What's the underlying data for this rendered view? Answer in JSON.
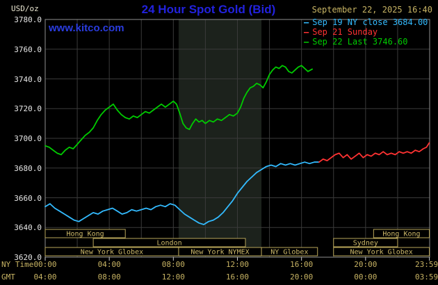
{
  "header": {
    "unit": "USD/oz",
    "title": "24 Hour Spot Gold (Bid)",
    "datetime": "September 22, 2025 16:40",
    "watermark": "www.kitco.com"
  },
  "legend": {
    "items": [
      {
        "label": "Sep 19 NY close 3684.00",
        "color": "#33bbff"
      },
      {
        "label": "Sep 21 Sunday",
        "color": "#ff3232"
      },
      {
        "label": "Sep 22 Last 3746.60",
        "color": "#00cc00"
      }
    ]
  },
  "axes": {
    "ny_time_label": "NY Time",
    "gmt_label": "GMT",
    "x_ticks": [
      {
        "t": 0,
        "ny": "00:00",
        "gmt": "04:00"
      },
      {
        "t": 4,
        "ny": "04:00",
        "gmt": "08:00"
      },
      {
        "t": 8,
        "ny": "08:00",
        "gmt": "12:00"
      },
      {
        "t": 12,
        "ny": "12:00",
        "gmt": "16:00"
      },
      {
        "t": 16,
        "ny": "16:00",
        "gmt": "20:00"
      },
      {
        "t": 20,
        "ny": "20:00",
        "gmt": "00:00"
      },
      {
        "t": 23.983,
        "ny": "23:59",
        "gmt": "03:59"
      }
    ]
  },
  "sessions": {
    "rows": [
      [
        {
          "label": "Hong Kong",
          "start": 0,
          "end": 5.0
        },
        {
          "label": "Hong Kong",
          "start": 20.5,
          "end": 23.98
        }
      ],
      [
        {
          "label": "London",
          "start": 3.0,
          "end": 12.5
        },
        {
          "label": "Sydney",
          "start": 18.0,
          "end": 22.0
        }
      ],
      [
        {
          "label": "New York Globex",
          "start": 0,
          "end": 8.33
        },
        {
          "label": "New York NYMEX",
          "start": 8.33,
          "end": 13.5
        },
        {
          "label": "NY Globex",
          "start": 13.5,
          "end": 17.0
        },
        {
          "label": "New York Globex",
          "start": 18.0,
          "end": 23.98
        }
      ]
    ]
  },
  "chart_data": {
    "type": "line",
    "title": "24 Hour Spot Gold (Bid)",
    "xlabel": "NY Time (hours)",
    "ylabel": "USD/oz",
    "ylim": [
      3620,
      3780
    ],
    "xlim_hours": [
      0,
      24
    ],
    "y_ticks": [
      3780,
      3760,
      3740,
      3720,
      3700,
      3680,
      3660,
      3640,
      3620
    ],
    "grid": true,
    "legend_position": "top-right",
    "shaded_band_hours": [
      8.33,
      13.5
    ],
    "series": [
      {
        "name": "Sep 19 NY close 3684.00",
        "color": "#33bbff",
        "points": [
          [
            0.0,
            3654
          ],
          [
            0.3,
            3656
          ],
          [
            0.6,
            3653
          ],
          [
            0.9,
            3651
          ],
          [
            1.2,
            3649
          ],
          [
            1.5,
            3647
          ],
          [
            1.8,
            3645
          ],
          [
            2.1,
            3644
          ],
          [
            2.4,
            3646
          ],
          [
            2.7,
            3648
          ],
          [
            3.0,
            3650
          ],
          [
            3.3,
            3649
          ],
          [
            3.6,
            3651
          ],
          [
            3.9,
            3652
          ],
          [
            4.2,
            3653
          ],
          [
            4.5,
            3651
          ],
          [
            4.8,
            3649
          ],
          [
            5.1,
            3650
          ],
          [
            5.4,
            3652
          ],
          [
            5.7,
            3651
          ],
          [
            6.0,
            3652
          ],
          [
            6.3,
            3653
          ],
          [
            6.6,
            3652
          ],
          [
            6.9,
            3654
          ],
          [
            7.2,
            3655
          ],
          [
            7.5,
            3654
          ],
          [
            7.8,
            3656
          ],
          [
            8.1,
            3655
          ],
          [
            8.4,
            3652
          ],
          [
            8.7,
            3649
          ],
          [
            9.0,
            3647
          ],
          [
            9.3,
            3645
          ],
          [
            9.6,
            3643
          ],
          [
            9.9,
            3642
          ],
          [
            10.2,
            3644
          ],
          [
            10.5,
            3645
          ],
          [
            10.8,
            3647
          ],
          [
            11.1,
            3650
          ],
          [
            11.4,
            3654
          ],
          [
            11.7,
            3658
          ],
          [
            12.0,
            3663
          ],
          [
            12.3,
            3667
          ],
          [
            12.6,
            3671
          ],
          [
            12.9,
            3674
          ],
          [
            13.2,
            3677
          ],
          [
            13.5,
            3679
          ],
          [
            13.8,
            3681
          ],
          [
            14.1,
            3682
          ],
          [
            14.4,
            3681
          ],
          [
            14.7,
            3683
          ],
          [
            15.0,
            3682
          ],
          [
            15.3,
            3683
          ],
          [
            15.6,
            3682
          ],
          [
            15.9,
            3683
          ],
          [
            16.2,
            3684
          ],
          [
            16.5,
            3683
          ],
          [
            16.8,
            3684
          ],
          [
            17.1,
            3684
          ]
        ]
      },
      {
        "name": "Sep 21 Sunday",
        "color": "#ff3232",
        "points": [
          [
            17.1,
            3684
          ],
          [
            17.35,
            3686
          ],
          [
            17.6,
            3685
          ],
          [
            17.85,
            3687
          ],
          [
            18.1,
            3689
          ],
          [
            18.35,
            3690
          ],
          [
            18.6,
            3687
          ],
          [
            18.85,
            3689
          ],
          [
            19.1,
            3686
          ],
          [
            19.35,
            3688
          ],
          [
            19.6,
            3690
          ],
          [
            19.85,
            3687
          ],
          [
            20.1,
            3689
          ],
          [
            20.35,
            3688
          ],
          [
            20.6,
            3690
          ],
          [
            20.85,
            3689
          ],
          [
            21.1,
            3691
          ],
          [
            21.35,
            3689
          ],
          [
            21.6,
            3690
          ],
          [
            21.85,
            3689
          ],
          [
            22.1,
            3691
          ],
          [
            22.35,
            3690
          ],
          [
            22.6,
            3691
          ],
          [
            22.85,
            3690
          ],
          [
            23.1,
            3692
          ],
          [
            23.35,
            3691
          ],
          [
            23.6,
            3693
          ],
          [
            23.8,
            3694
          ],
          [
            23.98,
            3697
          ]
        ]
      },
      {
        "name": "Sep 22 Last 3746.60",
        "color": "#00cc00",
        "points": [
          [
            0.0,
            3695
          ],
          [
            0.25,
            3694
          ],
          [
            0.5,
            3692
          ],
          [
            0.75,
            3690
          ],
          [
            1.0,
            3689
          ],
          [
            1.25,
            3692
          ],
          [
            1.5,
            3694
          ],
          [
            1.75,
            3693
          ],
          [
            2.0,
            3696
          ],
          [
            2.25,
            3699
          ],
          [
            2.5,
            3702
          ],
          [
            2.75,
            3704
          ],
          [
            3.0,
            3707
          ],
          [
            3.25,
            3712
          ],
          [
            3.5,
            3716
          ],
          [
            3.75,
            3719
          ],
          [
            4.0,
            3721
          ],
          [
            4.25,
            3723
          ],
          [
            4.5,
            3719
          ],
          [
            4.75,
            3716
          ],
          [
            5.0,
            3714
          ],
          [
            5.25,
            3713
          ],
          [
            5.5,
            3715
          ],
          [
            5.75,
            3714
          ],
          [
            6.0,
            3716
          ],
          [
            6.25,
            3718
          ],
          [
            6.5,
            3717
          ],
          [
            6.75,
            3719
          ],
          [
            7.0,
            3721
          ],
          [
            7.25,
            3723
          ],
          [
            7.5,
            3721
          ],
          [
            7.75,
            3723
          ],
          [
            8.0,
            3725
          ],
          [
            8.2,
            3723
          ],
          [
            8.4,
            3717
          ],
          [
            8.6,
            3710
          ],
          [
            8.8,
            3707
          ],
          [
            9.0,
            3706
          ],
          [
            9.2,
            3710
          ],
          [
            9.4,
            3713
          ],
          [
            9.6,
            3711
          ],
          [
            9.8,
            3712
          ],
          [
            10.0,
            3710
          ],
          [
            10.25,
            3712
          ],
          [
            10.5,
            3711
          ],
          [
            10.75,
            3713
          ],
          [
            11.0,
            3712
          ],
          [
            11.25,
            3714
          ],
          [
            11.5,
            3716
          ],
          [
            11.75,
            3715
          ],
          [
            12.0,
            3717
          ],
          [
            12.2,
            3721
          ],
          [
            12.4,
            3727
          ],
          [
            12.6,
            3731
          ],
          [
            12.8,
            3734
          ],
          [
            13.0,
            3735
          ],
          [
            13.2,
            3737
          ],
          [
            13.4,
            3736
          ],
          [
            13.6,
            3734
          ],
          [
            13.8,
            3738
          ],
          [
            14.0,
            3743
          ],
          [
            14.2,
            3746
          ],
          [
            14.4,
            3748
          ],
          [
            14.6,
            3747
          ],
          [
            14.8,
            3749
          ],
          [
            15.0,
            3748
          ],
          [
            15.2,
            3745
          ],
          [
            15.4,
            3744
          ],
          [
            15.6,
            3746
          ],
          [
            15.8,
            3748
          ],
          [
            16.0,
            3749
          ],
          [
            16.2,
            3747
          ],
          [
            16.4,
            3745
          ],
          [
            16.67,
            3746.6
          ]
        ]
      }
    ]
  },
  "colors": {
    "background": "#000000",
    "title_blue": "#2222dd",
    "link_blue": "#2a3cdf",
    "tan": "#c8b464",
    "axis_text_white": "#e8e8e8",
    "grid": "#3a3a3a",
    "plot_border": "#8f8f8f",
    "band": "#1c221c",
    "session_border": "#b9a65a",
    "session_text": "#cdb96a",
    "tick": "#cccccc"
  }
}
